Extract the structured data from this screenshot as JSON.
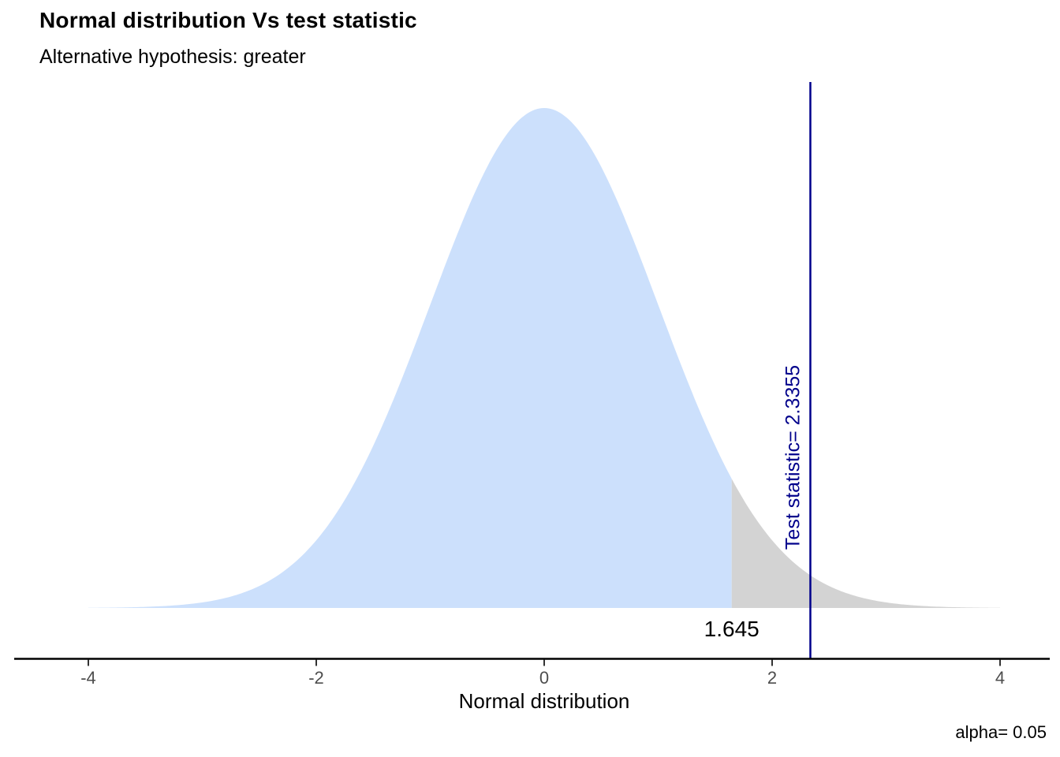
{
  "header": {
    "title": "Normal distribution Vs test statistic",
    "subtitle": "Alternative hypothesis: greater"
  },
  "chart_data": {
    "type": "area",
    "title": "Normal distribution Vs test statistic",
    "subtitle": "Alternative hypothesis: greater",
    "xlabel": "Normal distribution",
    "ylabel": "",
    "xlim": [
      -4,
      4
    ],
    "x_ticks": [
      -4,
      -2,
      0,
      2,
      4
    ],
    "curve": "standard_normal_pdf",
    "peak_density": 0.3989,
    "grid": "off",
    "legend": "none",
    "series": [
      {
        "name": "normal-density-acceptance",
        "region": [
          -4,
          1.645
        ],
        "fill": "#CCE0FC"
      },
      {
        "name": "rejection-tail",
        "region": [
          1.645,
          4
        ],
        "fill": "#D3D3D3"
      }
    ],
    "critical_value": 1.645,
    "critical_value_label": "1.645",
    "test_statistic": 2.3355,
    "test_statistic_label": "Test statistic= 2.3355",
    "alpha": 0.05,
    "alpha_label": "alpha= 0.05",
    "colors": {
      "acceptance_fill": "#CCE0FC",
      "rejection_fill": "#D3D3D3",
      "test_line": "#00008B",
      "axis_line": "#000000",
      "tick_mark": "#333333",
      "tick_label": "#4d4d4d",
      "text": "#000000"
    }
  }
}
